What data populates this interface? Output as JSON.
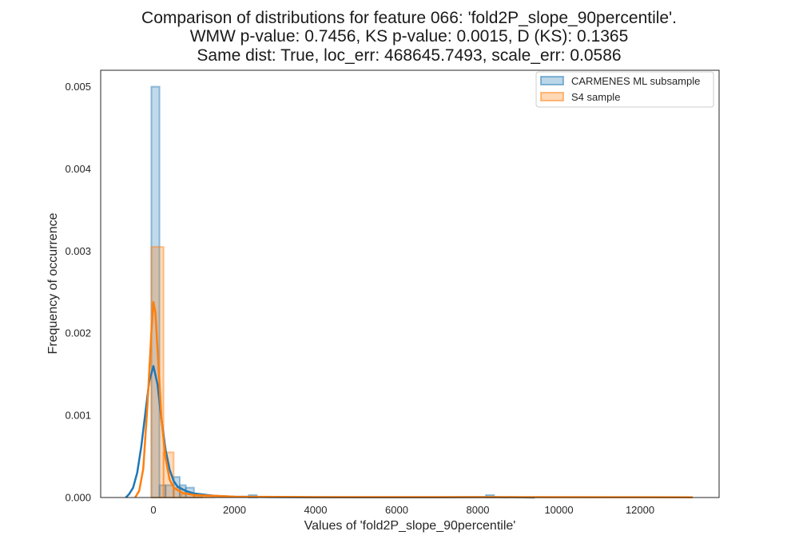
{
  "chart_data": {
    "type": "histogram",
    "title_lines": [
      "Comparison of distributions for feature 066: 'fold2P_slope_90percentile'.",
      "WMW p-value: 0.7456, KS p-value: 0.0015, D (KS): 0.1365",
      "Same dist: True, loc_err: 468645.7493, scale_err: 0.0586"
    ],
    "xlabel": "Values of 'fold2P_slope_90percentile'",
    "ylabel": "Frequency of occurrence",
    "xlim": [
      -1300,
      13950
    ],
    "ylim": [
      0,
      0.0052
    ],
    "xticks": [
      0,
      2000,
      4000,
      6000,
      8000,
      10000,
      12000
    ],
    "xtick_labels": [
      "0",
      "2000",
      "4000",
      "6000",
      "8000",
      "10000",
      "12000"
    ],
    "yticks": [
      0,
      0.001,
      0.002,
      0.003,
      0.004,
      0.005
    ],
    "ytick_labels": [
      "0.000",
      "0.001",
      "0.002",
      "0.003",
      "0.004",
      "0.005"
    ],
    "grid": false,
    "legend_position": "top-right",
    "series": [
      {
        "name": "CARMENES ML subsample",
        "color": "#1f77b4",
        "kind": "histogram+kde",
        "bins": [
          {
            "x0": -50,
            "x1": 150,
            "y": 0.005
          },
          {
            "x0": 150,
            "x1": 300,
            "y": 0.00015
          },
          {
            "x0": 300,
            "x1": 500,
            "y": 0.00015
          },
          {
            "x0": 500,
            "x1": 650,
            "y": 0.00025
          },
          {
            "x0": 650,
            "x1": 800,
            "y": 0.00015
          },
          {
            "x0": 800,
            "x1": 1000,
            "y": 0.00012
          },
          {
            "x0": 1000,
            "x1": 1200,
            "y": 4e-05
          },
          {
            "x0": 2350,
            "x1": 2550,
            "y": 3e-05
          },
          {
            "x0": 8200,
            "x1": 8400,
            "y": 3e-05
          }
        ],
        "kde": [
          [
            -680,
            0.0
          ],
          [
            -600,
            4e-05
          ],
          [
            -500,
            0.00012
          ],
          [
            -400,
            0.0003
          ],
          [
            -300,
            0.00062
          ],
          [
            -200,
            0.00102
          ],
          [
            -100,
            0.00142
          ],
          [
            0,
            0.0016
          ],
          [
            100,
            0.00138
          ],
          [
            200,
            0.00095
          ],
          [
            300,
            0.00058
          ],
          [
            400,
            0.00034
          ],
          [
            500,
            0.0002
          ],
          [
            600,
            0.00013
          ],
          [
            800,
            8e-05
          ],
          [
            1000,
            5e-05
          ],
          [
            1500,
            2e-05
          ],
          [
            2000,
            1e-05
          ],
          [
            3000,
            5e-06
          ],
          [
            5000,
            3e-06
          ],
          [
            7000,
            3e-06
          ],
          [
            8300,
            5e-06
          ],
          [
            9000,
            2e-06
          ],
          [
            9400,
            0.0
          ]
        ]
      },
      {
        "name": "S4 sample",
        "color": "#ff7f0e",
        "kind": "histogram+kde",
        "bins": [
          {
            "x0": -50,
            "x1": 250,
            "y": 0.00305
          },
          {
            "x0": 250,
            "x1": 500,
            "y": 0.00055
          },
          {
            "x0": 500,
            "x1": 700,
            "y": 0.00012
          },
          {
            "x0": 700,
            "x1": 1000,
            "y": 4e-05
          },
          {
            "x0": 1000,
            "x1": 1500,
            "y": 2e-05
          }
        ],
        "kde": [
          [
            -450,
            0.0
          ],
          [
            -350,
            8e-05
          ],
          [
            -250,
            0.00035
          ],
          [
            -150,
            0.0011
          ],
          [
            -50,
            0.002
          ],
          [
            0,
            0.00238
          ],
          [
            50,
            0.00225
          ],
          [
            120,
            0.00165
          ],
          [
            200,
            0.00095
          ],
          [
            300,
            0.00048
          ],
          [
            400,
            0.00022
          ],
          [
            500,
            0.00012
          ],
          [
            700,
            6e-05
          ],
          [
            1000,
            3e-05
          ],
          [
            1500,
            2e-05
          ],
          [
            2000,
            1e-05
          ],
          [
            4000,
            5e-06
          ],
          [
            8000,
            5e-06
          ],
          [
            12000,
            4e-06
          ],
          [
            13300,
            3e-06
          ]
        ]
      }
    ]
  }
}
